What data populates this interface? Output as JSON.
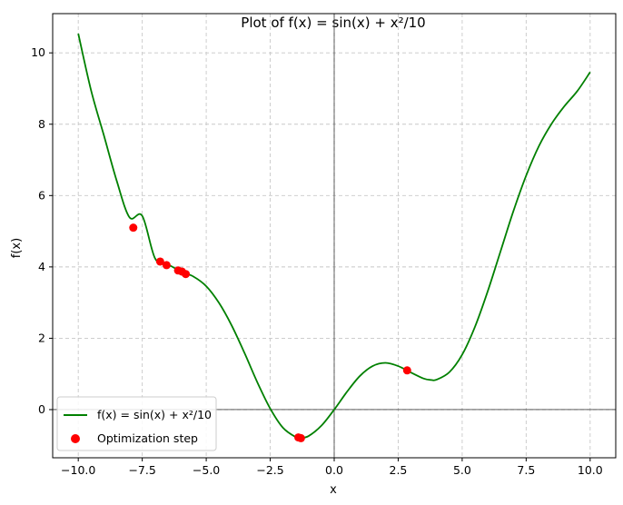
{
  "chart_data": {
    "type": "line",
    "title_prefix": "Plot of ",
    "title_math": "f(x) = sin(x) + x²/10",
    "xlabel": "x",
    "ylabel": "f(x)",
    "xlim": [
      -11.0,
      11.0
    ],
    "ylim": [
      -1.35,
      11.1
    ],
    "xticks": [
      -10.0,
      -7.5,
      -5.0,
      -2.5,
      0.0,
      2.5,
      5.0,
      7.5,
      10.0
    ],
    "xtick_labels": [
      "−10.0",
      "−7.5",
      "−5.0",
      "−2.5",
      "0.0",
      "2.5",
      "5.0",
      "7.5",
      "10.0"
    ],
    "yticks": [
      0,
      2,
      4,
      6,
      8,
      10
    ],
    "ytick_labels": [
      "0",
      "2",
      "4",
      "6",
      "8",
      "10"
    ],
    "grid": true,
    "reference_lines": {
      "x": 0,
      "y": 0
    },
    "legend_position": "lower-left",
    "series": [
      {
        "name": "f(x) = sin(x) + x²/10",
        "kind": "line",
        "color": "#008000",
        "x": [
          -10.0,
          -9.5,
          -9.0,
          -8.5,
          -8.0,
          -7.5,
          -7.0,
          -6.5,
          -6.0,
          -5.5,
          -5.0,
          -4.5,
          -4.0,
          -3.5,
          -3.0,
          -2.5,
          -2.0,
          -1.5,
          -1.3,
          -1.0,
          -0.5,
          0.0,
          0.5,
          1.0,
          1.5,
          2.0,
          2.5,
          3.0,
          3.5,
          3.8,
          4.0,
          4.5,
          5.0,
          5.5,
          6.0,
          6.5,
          7.0,
          7.5,
          8.0,
          8.5,
          9.0,
          9.5,
          10.0
        ],
        "y": [
          10.54,
          8.95,
          7.69,
          6.42,
          5.39,
          5.43,
          4.24,
          4.07,
          3.88,
          3.73,
          3.46,
          2.99,
          2.35,
          1.58,
          0.76,
          0.03,
          -0.51,
          -0.77,
          -0.79,
          -0.74,
          -0.45,
          0.0,
          0.5,
          0.94,
          1.22,
          1.31,
          1.22,
          1.04,
          0.87,
          0.83,
          0.84,
          1.05,
          1.54,
          2.32,
          3.32,
          4.44,
          5.56,
          6.56,
          7.39,
          8.02,
          8.51,
          8.93,
          9.46
        ]
      },
      {
        "name": "Optimization step",
        "kind": "scatter",
        "color": "#ff0000",
        "x": [
          -7.85,
          -6.8,
          -6.55,
          -6.1,
          -5.95,
          -5.8,
          -1.4,
          -1.3,
          2.85
        ],
        "y": [
          5.1,
          4.15,
          4.05,
          3.9,
          3.87,
          3.8,
          -0.78,
          -0.8,
          1.1
        ]
      }
    ]
  }
}
